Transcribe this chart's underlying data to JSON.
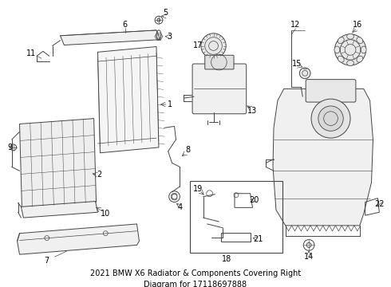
{
  "bg_color": "#ffffff",
  "line_color": "#444444",
  "label_color": "#000000",
  "fig_width": 4.9,
  "fig_height": 3.6,
  "dpi": 100,
  "label_fontsize": 7.0,
  "title": "2021 BMW X6 Radiator & Components Covering Right\nDiagram for 17118697888",
  "title_fontsize": 7.0
}
